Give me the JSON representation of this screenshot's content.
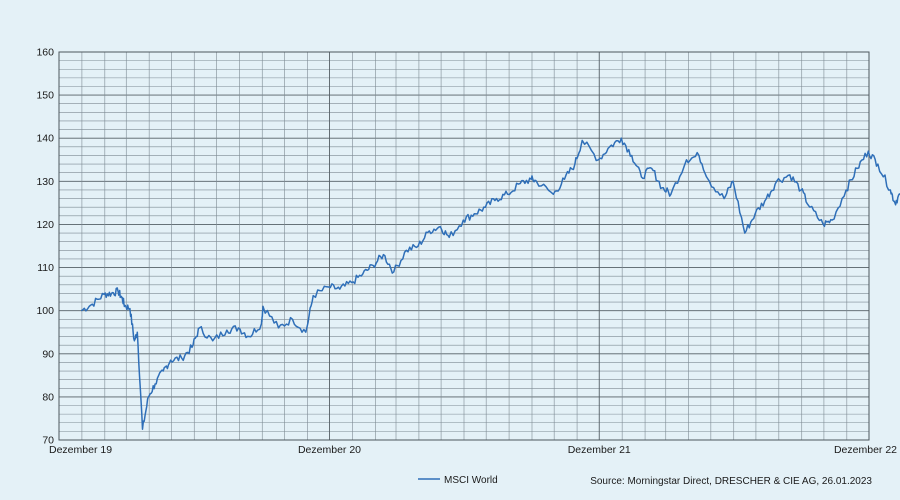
{
  "chart_data": {
    "type": "line",
    "y_ticks": [
      70,
      80,
      90,
      100,
      110,
      120,
      130,
      140,
      150,
      160
    ],
    "ylim": [
      70,
      160
    ],
    "x_tick_labels": [
      "Dezember 19",
      "Dezember 20",
      "Dezember 21",
      "Dezember 22"
    ],
    "x_tick_dates": [
      "2019-12",
      "2020-12",
      "2021-12",
      "2022-12"
    ],
    "xlim": [
      "2019-12",
      "2022-12"
    ],
    "grid": true,
    "legend_position": "bottom-center",
    "series": [
      {
        "name": "MSCI World",
        "color": "#2f6fb8",
        "x": [
          "2019-12-31",
          "2020-01-15",
          "2020-01-31",
          "2020-02-10",
          "2020-02-19",
          "2020-02-24",
          "2020-02-28",
          "2020-03-06",
          "2020-03-12",
          "2020-03-16",
          "2020-03-23",
          "2020-03-31",
          "2020-04-09",
          "2020-04-20",
          "2020-04-30",
          "2020-05-15",
          "2020-05-29",
          "2020-06-08",
          "2020-06-26",
          "2020-07-15",
          "2020-07-31",
          "2020-08-14",
          "2020-08-31",
          "2020-09-02",
          "2020-09-23",
          "2020-10-12",
          "2020-10-30",
          "2020-11-09",
          "2020-11-30",
          "2020-12-15",
          "2020-12-31",
          "2021-01-15",
          "2021-01-29",
          "2021-02-12",
          "2021-02-26",
          "2021-03-15",
          "2021-03-31",
          "2021-04-15",
          "2021-04-30",
          "2021-05-12",
          "2021-05-31",
          "2021-06-15",
          "2021-06-30",
          "2021-07-15",
          "2021-07-30",
          "2021-08-16",
          "2021-08-31",
          "2021-09-07",
          "2021-09-30",
          "2021-10-15",
          "2021-10-29",
          "2021-11-08",
          "2021-11-30",
          "2021-12-15",
          "2021-12-31",
          "2022-01-14",
          "2022-01-27",
          "2022-02-10",
          "2022-02-24",
          "2022-03-08",
          "2022-03-29",
          "2022-04-15",
          "2022-04-29",
          "2022-05-19",
          "2022-05-31",
          "2022-06-16",
          "2022-06-30",
          "2022-07-15",
          "2022-07-29",
          "2022-08-16",
          "2022-08-31",
          "2022-09-12",
          "2022-09-30",
          "2022-10-12",
          "2022-10-31",
          "2022-11-15",
          "2022-11-30",
          "2022-12-13",
          "2022-12-30",
          "2023-01-05",
          "2023-01-12",
          "2023-01-20",
          "2023-01-25"
        ],
        "values": [
          100.0,
          101.5,
          103.8,
          104.0,
          104.5,
          103.0,
          101.2,
          100.5,
          93.0,
          95.0,
          72.5,
          80.0,
          83.0,
          86.0,
          88.5,
          89.0,
          91.5,
          96.0,
          93.0,
          95.5,
          96.0,
          94.0,
          97.0,
          101.0,
          96.0,
          98.0,
          95.0,
          103.5,
          105.5,
          105.0,
          106.5,
          108.5,
          110.5,
          113.0,
          109.0,
          114.0,
          115.0,
          118.5,
          119.5,
          117.0,
          121.0,
          122.5,
          124.0,
          126.0,
          127.0,
          129.5,
          130.5,
          130.0,
          127.0,
          130.5,
          134.0,
          139.5,
          135.0,
          138.0,
          140.0,
          136.0,
          131.0,
          133.0,
          128.5,
          127.0,
          135.0,
          136.0,
          130.0,
          126.0,
          130.0,
          118.0,
          122.5,
          126.0,
          130.0,
          131.5,
          128.0,
          124.0,
          120.0,
          121.0,
          128.0,
          133.0,
          137.0,
          134.0,
          128.0,
          125.0,
          127.0,
          123.5,
          122.0
        ]
      }
    ]
  },
  "legend": {
    "label": "MSCI World"
  },
  "source": "Source: Morningstar Direct, DRESCHER & CIE AG, 26.01.2023"
}
